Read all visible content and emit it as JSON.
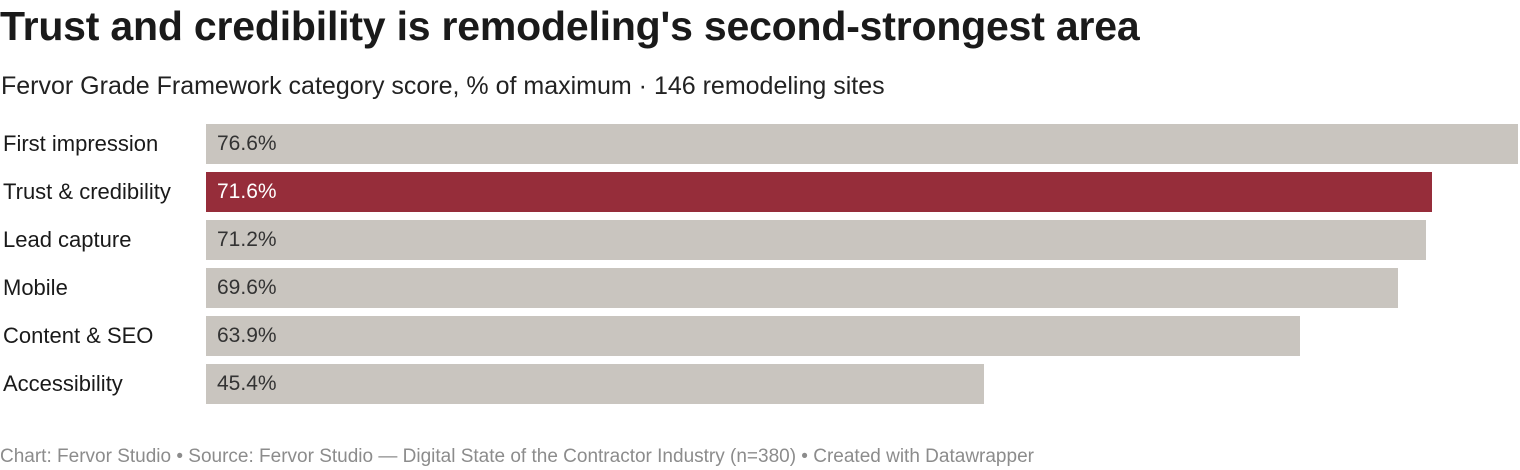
{
  "header": {
    "title": "Trust and credibility is remodeling's second-strongest area",
    "subtitle": "Fervor Grade Framework category score, % of maximum · 146 remodeling sites"
  },
  "footer": {
    "text": "Chart: Fervor Studio • Source: Fervor Studio — Digital State of the Contractor Industry (n=380) • Created with Datawrapper"
  },
  "colors": {
    "default_bar": "#c9c5bf",
    "highlight_bar": "#962d3a",
    "default_value_text": "#333333",
    "highlight_value_text": "#ffffff"
  },
  "chart_data": {
    "type": "bar",
    "orientation": "horizontal",
    "title": "Trust and credibility is remodeling's second-strongest area",
    "subtitle": "Fervor Grade Framework category score, % of maximum · 146 remodeling sites",
    "categories": [
      "First impression",
      "Trust & credibility",
      "Lead capture",
      "Mobile",
      "Content & SEO",
      "Accessibility"
    ],
    "values": [
      76.6,
      71.6,
      71.2,
      69.6,
      63.9,
      45.4
    ],
    "value_labels": [
      "76.6%",
      "71.6%",
      "71.2%",
      "69.6%",
      "63.9%",
      "45.4%"
    ],
    "highlighted": [
      false,
      true,
      false,
      false,
      false,
      false
    ],
    "xlim": [
      0,
      76.6
    ],
    "grid": false,
    "legend": "none"
  }
}
